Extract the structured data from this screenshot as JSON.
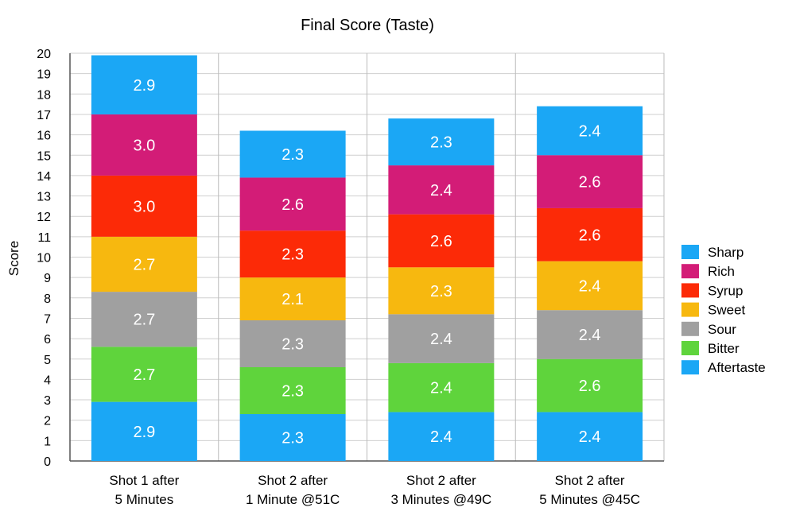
{
  "chart_data": {
    "type": "bar",
    "stacked": true,
    "title": "Final Score (Taste)",
    "xlabel": "",
    "ylabel": "Score",
    "ylim": [
      0,
      20
    ],
    "yticks": [
      0,
      1,
      2,
      3,
      4,
      5,
      6,
      7,
      8,
      9,
      10,
      11,
      12,
      13,
      14,
      15,
      16,
      17,
      18,
      19,
      20
    ],
    "grid": true,
    "legend_position": "right",
    "categories": [
      [
        "Shot 1 after",
        "5 Minutes"
      ],
      [
        "Shot 2 after",
        "1 Minute @51C"
      ],
      [
        "Shot 2 after",
        "3 Minutes @49C"
      ],
      [
        "Shot 2 after",
        "5 Minutes @45C"
      ]
    ],
    "series": [
      {
        "name": "Aftertaste",
        "color": "#1ba7f5",
        "values": [
          2.9,
          2.3,
          2.4,
          2.4
        ],
        "labels": [
          "2.9",
          "2.3",
          "2.4",
          "2.4"
        ]
      },
      {
        "name": "Bitter",
        "color": "#5fd43c",
        "values": [
          2.7,
          2.3,
          2.4,
          2.6
        ],
        "labels": [
          "2.7",
          "2.3",
          "2.4",
          "2.6"
        ]
      },
      {
        "name": "Sour",
        "color": "#a0a0a0",
        "values": [
          2.7,
          2.3,
          2.4,
          2.4
        ],
        "labels": [
          "2.7",
          "2.3",
          "2.4",
          "2.4"
        ]
      },
      {
        "name": "Sweet",
        "color": "#f7b80f",
        "values": [
          2.7,
          2.1,
          2.3,
          2.4
        ],
        "labels": [
          "2.7",
          "2.1",
          "2.3",
          "2.4"
        ]
      },
      {
        "name": "Syrup",
        "color": "#fc2a07",
        "values": [
          3.0,
          2.3,
          2.6,
          2.6
        ],
        "labels": [
          "3.0",
          "2.3",
          "2.6",
          "2.6"
        ]
      },
      {
        "name": "Rich",
        "color": "#d31c77",
        "values": [
          3.0,
          2.6,
          2.4,
          2.6
        ],
        "labels": [
          "3.0",
          "2.6",
          "2.4",
          "2.6"
        ]
      },
      {
        "name": "Sharp",
        "color": "#1ba7f5",
        "values": [
          2.9,
          2.3,
          2.3,
          2.4
        ],
        "labels": [
          "2.9",
          "2.3",
          "2.3",
          "2.4"
        ]
      }
    ],
    "legend_order": [
      "Sharp",
      "Rich",
      "Syrup",
      "Sweet",
      "Sour",
      "Bitter",
      "Aftertaste"
    ]
  }
}
